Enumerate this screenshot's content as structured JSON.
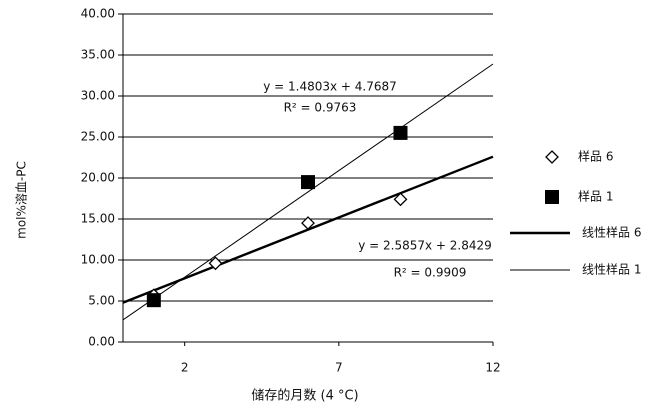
{
  "chart_data": {
    "type": "scatter",
    "xlabel": "储存的月数 (4 °C)",
    "ylabel": "mol%溶血-PC",
    "xlim": [
      0,
      12
    ],
    "xticks": [
      2,
      7,
      12
    ],
    "ylim": [
      0,
      40
    ],
    "yticks": [
      {
        "value": 0,
        "label": "0.00"
      },
      {
        "value": 5,
        "label": "5.00"
      },
      {
        "value": 10,
        "label": "10.00"
      },
      {
        "value": 15,
        "label": "15.00"
      },
      {
        "value": 20,
        "label": "20.00"
      },
      {
        "value": 25,
        "label": "25.00"
      },
      {
        "value": 30,
        "label": "30.00"
      },
      {
        "value": 35,
        "label": "35.00"
      },
      {
        "value": 40,
        "label": "40.00"
      }
    ],
    "grid": true,
    "legend": "right",
    "series": [
      {
        "name": "样品 6",
        "type": "scatter",
        "marker": "diamond",
        "color": "#000000",
        "x": [
          1,
          3,
          6,
          9
        ],
        "values": [
          5.7,
          9.6,
          14.5,
          17.4
        ]
      },
      {
        "name": "样品 1",
        "type": "scatter",
        "marker": "square",
        "color": "#000000",
        "x": [
          1,
          6,
          9
        ],
        "values": [
          5.1,
          19.5,
          25.5
        ]
      },
      {
        "name": "线性样品 6",
        "type": "line",
        "color": "#000000",
        "width": 2.4,
        "x": [
          0,
          12
        ],
        "values": [
          4.8,
          22.6
        ]
      },
      {
        "name": "线性样品 1",
        "type": "line",
        "color": "#000000",
        "width": 1,
        "x": [
          0,
          12
        ],
        "values": [
          2.7,
          33.9
        ]
      }
    ],
    "annotations": [
      "y = 1.4803x + 4.7687",
      "R² = 0.9763",
      "y = 2.5857x + 2.8429",
      "R² = 0.9909"
    ]
  }
}
